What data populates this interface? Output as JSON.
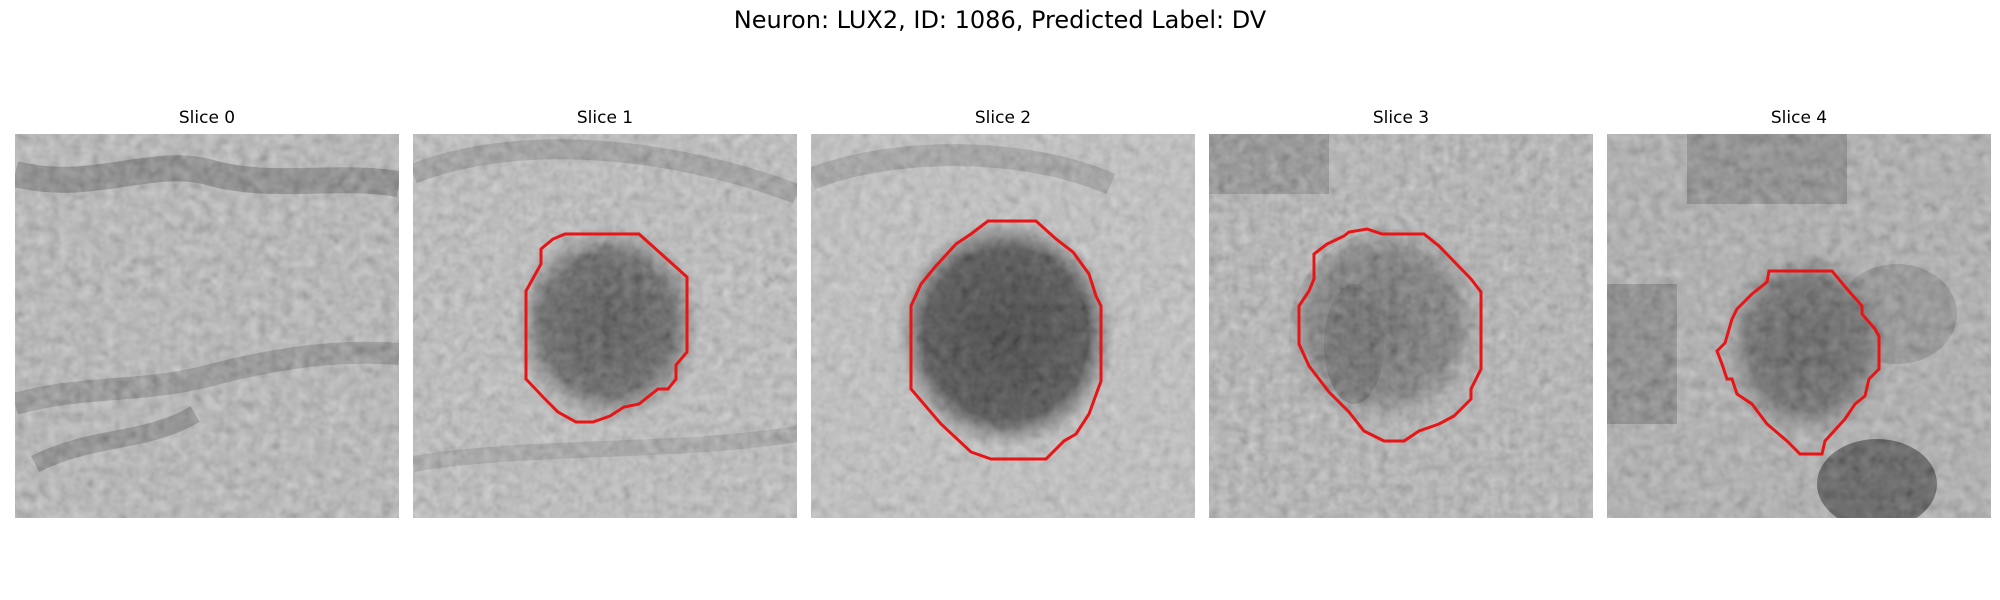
{
  "figure": {
    "title": "Neuron: LUX2, ID: 1086, Predicted Label: DV"
  },
  "panels": [
    {
      "title": "Slice 0",
      "has_contour": false
    },
    {
      "title": "Slice 1",
      "has_contour": true
    },
    {
      "title": "Slice 2",
      "has_contour": true
    },
    {
      "title": "Slice 3",
      "has_contour": true
    },
    {
      "title": "Slice 4",
      "has_contour": true
    }
  ],
  "colors": {
    "contour": "#e81416",
    "background": "#ffffff"
  }
}
